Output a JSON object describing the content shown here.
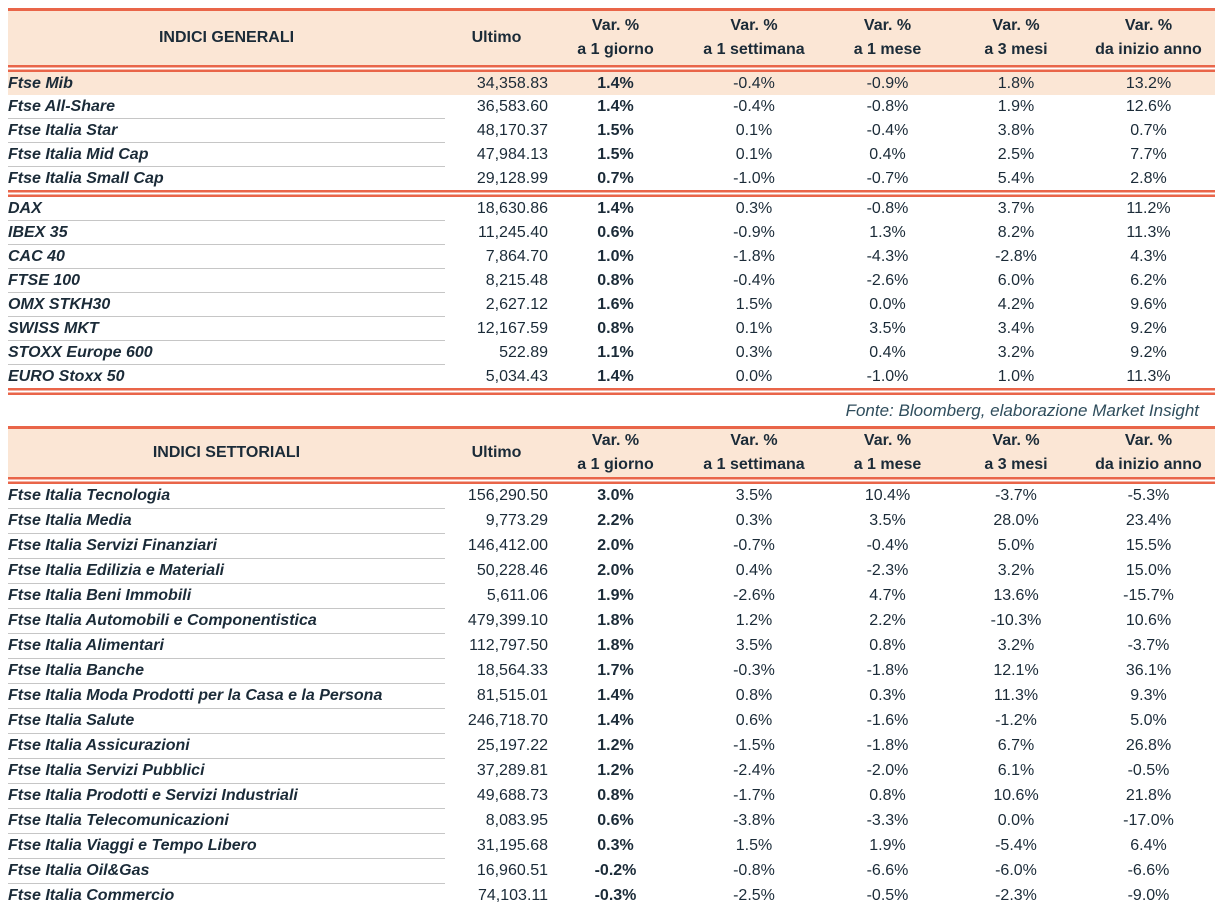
{
  "theme": {
    "accent_orange": "#e96549",
    "peach_background": "#fbe6d5",
    "text_dark": "#1b2b38",
    "row_divider_gray": "#c6c6c6",
    "source_text_color": "#2f4d5c"
  },
  "source_note": "Fonte: Bloomberg, elaborazione Market Insight",
  "tables": [
    {
      "title": "INDICI GENERALI",
      "col_ultimo": "Ultimo",
      "var_label": "Var. %",
      "periods": [
        "a 1 giorno",
        "a 1 settimana",
        "a 1 mese",
        "a 3 mesi",
        "da inizio anno"
      ],
      "bottom_rule": "double",
      "rows": [
        {
          "name": "Ftse Mib",
          "ultimo": "34,358.83",
          "d1": "1.4%",
          "w1": "-0.4%",
          "m1": "-0.9%",
          "m3": "1.8%",
          "ytd": "13.2%",
          "highlight": true,
          "underline": false
        },
        {
          "name": "Ftse All-Share",
          "ultimo": "36,583.60",
          "d1": "1.4%",
          "w1": "-0.4%",
          "m1": "-0.8%",
          "m3": "1.9%",
          "ytd": "12.6%"
        },
        {
          "name": "Ftse Italia Star",
          "ultimo": "48,170.37",
          "d1": "1.5%",
          "w1": "0.1%",
          "m1": "-0.4%",
          "m3": "3.8%",
          "ytd": "0.7%"
        },
        {
          "name": "Ftse Italia Mid Cap",
          "ultimo": "47,984.13",
          "d1": "1.5%",
          "w1": "0.1%",
          "m1": "0.4%",
          "m3": "2.5%",
          "ytd": "7.7%"
        },
        {
          "name": "Ftse Italia Small Cap",
          "ultimo": "29,128.99",
          "d1": "0.7%",
          "w1": "-1.0%",
          "m1": "-0.7%",
          "m3": "5.4%",
          "ytd": "2.8%",
          "underline": false,
          "sep_after": true
        },
        {
          "name": "DAX",
          "ultimo": "18,630.86",
          "d1": "1.4%",
          "w1": "0.3%",
          "m1": "-0.8%",
          "m3": "3.7%",
          "ytd": "11.2%"
        },
        {
          "name": "IBEX 35",
          "ultimo": "11,245.40",
          "d1": "0.6%",
          "w1": "-0.9%",
          "m1": "1.3%",
          "m3": "8.2%",
          "ytd": "11.3%"
        },
        {
          "name": "CAC 40",
          "ultimo": "7,864.70",
          "d1": "1.0%",
          "w1": "-1.8%",
          "m1": "-4.3%",
          "m3": "-2.8%",
          "ytd": "4.3%"
        },
        {
          "name": "FTSE 100",
          "ultimo": "8,215.48",
          "d1": "0.8%",
          "w1": "-0.4%",
          "m1": "-2.6%",
          "m3": "6.0%",
          "ytd": "6.2%"
        },
        {
          "name": "OMX STKH30",
          "ultimo": "2,627.12",
          "d1": "1.6%",
          "w1": "1.5%",
          "m1": "0.0%",
          "m3": "4.2%",
          "ytd": "9.6%"
        },
        {
          "name": "SWISS MKT",
          "ultimo": "12,167.59",
          "d1": "0.8%",
          "w1": "0.1%",
          "m1": "3.5%",
          "m3": "3.4%",
          "ytd": "9.2%"
        },
        {
          "name": "STOXX Europe 600",
          "ultimo": "522.89",
          "d1": "1.1%",
          "w1": "0.3%",
          "m1": "0.4%",
          "m3": "3.2%",
          "ytd": "9.2%"
        },
        {
          "name": "EURO Stoxx 50",
          "ultimo": "5,034.43",
          "d1": "1.4%",
          "w1": "0.0%",
          "m1": "-1.0%",
          "m3": "1.0%",
          "ytd": "11.3%",
          "underline": false
        }
      ]
    },
    {
      "title": "INDICI SETTORIALI",
      "col_ultimo": "Ultimo",
      "var_label": "Var. %",
      "periods": [
        "a 1 giorno",
        "a 1 settimana",
        "a 1 mese",
        "a 3 mesi",
        "da inizio anno"
      ],
      "bottom_rule": "single",
      "rows": [
        {
          "name": "Ftse Italia Tecnologia",
          "ultimo": "156,290.50",
          "d1": "3.0%",
          "w1": "3.5%",
          "m1": "10.4%",
          "m3": "-3.7%",
          "ytd": "-5.3%"
        },
        {
          "name": "Ftse Italia Media",
          "ultimo": "9,773.29",
          "d1": "2.2%",
          "w1": "0.3%",
          "m1": "3.5%",
          "m3": "28.0%",
          "ytd": "23.4%"
        },
        {
          "name": "Ftse Italia Servizi Finanziari",
          "ultimo": "146,412.00",
          "d1": "2.0%",
          "w1": "-0.7%",
          "m1": "-0.4%",
          "m3": "5.0%",
          "ytd": "15.5%"
        },
        {
          "name": "Ftse Italia Edilizia e Materiali",
          "ultimo": "50,228.46",
          "d1": "2.0%",
          "w1": "0.4%",
          "m1": "-2.3%",
          "m3": "3.2%",
          "ytd": "15.0%"
        },
        {
          "name": "Ftse Italia Beni Immobili",
          "ultimo": "5,611.06",
          "d1": "1.9%",
          "w1": "-2.6%",
          "m1": "4.7%",
          "m3": "13.6%",
          "ytd": "-15.7%"
        },
        {
          "name": "Ftse Italia Automobili e Componentistica",
          "ultimo": "479,399.10",
          "d1": "1.8%",
          "w1": "1.2%",
          "m1": "2.2%",
          "m3": "-10.3%",
          "ytd": "10.6%"
        },
        {
          "name": "Ftse Italia Alimentari",
          "ultimo": "112,797.50",
          "d1": "1.8%",
          "w1": "3.5%",
          "m1": "0.8%",
          "m3": "3.2%",
          "ytd": "-3.7%"
        },
        {
          "name": "Ftse Italia Banche",
          "ultimo": "18,564.33",
          "d1": "1.7%",
          "w1": "-0.3%",
          "m1": "-1.8%",
          "m3": "12.1%",
          "ytd": "36.1%"
        },
        {
          "name": "Ftse Italia Moda Prodotti per la Casa e la Persona",
          "ultimo": "81,515.01",
          "d1": "1.4%",
          "w1": "0.8%",
          "m1": "0.3%",
          "m3": "11.3%",
          "ytd": "9.3%"
        },
        {
          "name": "Ftse Italia Salute",
          "ultimo": "246,718.70",
          "d1": "1.4%",
          "w1": "0.6%",
          "m1": "-1.6%",
          "m3": "-1.2%",
          "ytd": "5.0%"
        },
        {
          "name": "Ftse Italia Assicurazioni",
          "ultimo": "25,197.22",
          "d1": "1.2%",
          "w1": "-1.5%",
          "m1": "-1.8%",
          "m3": "6.7%",
          "ytd": "26.8%"
        },
        {
          "name": "Ftse Italia Servizi Pubblici",
          "ultimo": "37,289.81",
          "d1": "1.2%",
          "w1": "-2.4%",
          "m1": "-2.0%",
          "m3": "6.1%",
          "ytd": "-0.5%"
        },
        {
          "name": "Ftse Italia Prodotti e Servizi Industriali",
          "ultimo": "49,688.73",
          "d1": "0.8%",
          "w1": "-1.7%",
          "m1": "0.8%",
          "m3": "10.6%",
          "ytd": "21.8%"
        },
        {
          "name": "Ftse Italia Telecomunicazioni",
          "ultimo": "8,083.95",
          "d1": "0.6%",
          "w1": "-3.8%",
          "m1": "-3.3%",
          "m3": "0.0%",
          "ytd": "-17.0%"
        },
        {
          "name": "Ftse Italia Viaggi e Tempo Libero",
          "ultimo": "31,195.68",
          "d1": "0.3%",
          "w1": "1.5%",
          "m1": "1.9%",
          "m3": "-5.4%",
          "ytd": "6.4%"
        },
        {
          "name": "Ftse Italia Oil&Gas",
          "ultimo": "16,960.51",
          "d1": "-0.2%",
          "w1": "-0.8%",
          "m1": "-6.6%",
          "m3": "-6.0%",
          "ytd": "-6.6%"
        },
        {
          "name": "Ftse Italia Commercio",
          "ultimo": "74,103.11",
          "d1": "-0.3%",
          "w1": "-2.5%",
          "m1": "-0.5%",
          "m3": "-2.3%",
          "ytd": "-9.0%",
          "underline": false
        }
      ]
    }
  ]
}
